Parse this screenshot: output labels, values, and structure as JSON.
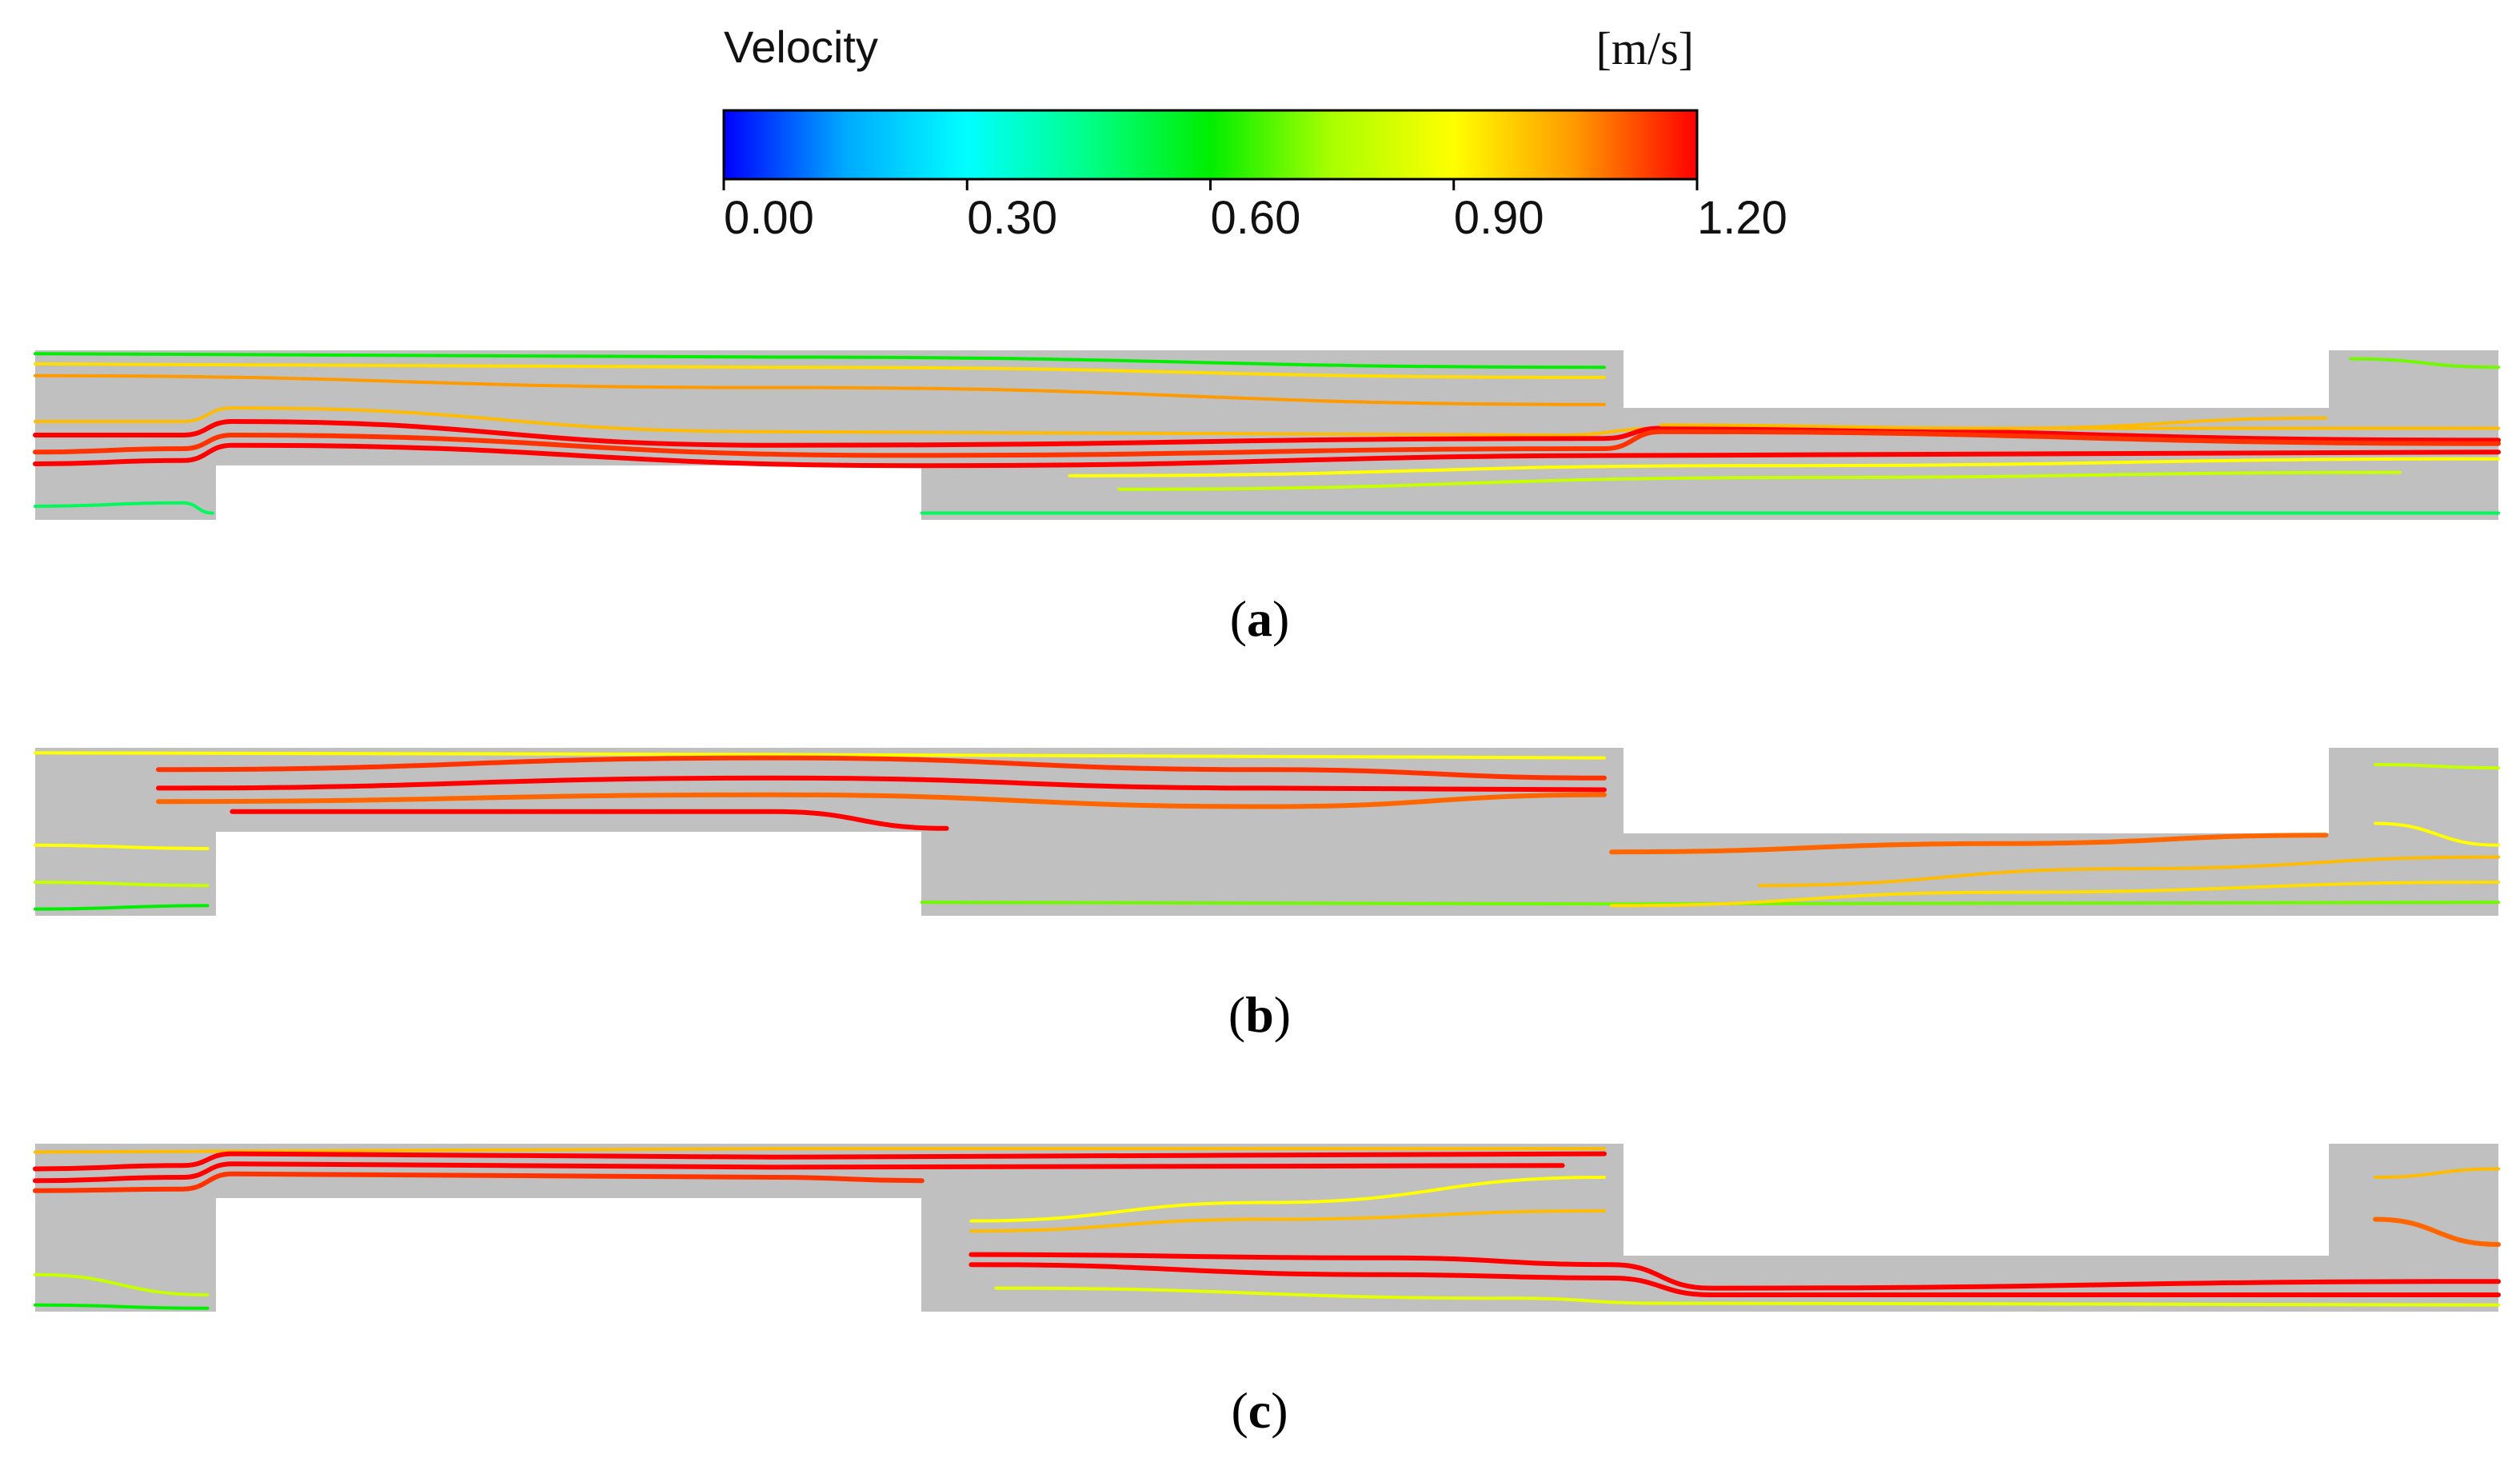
{
  "legend": {
    "title": "Velocity",
    "unit": "[m/s]",
    "min": 0.0,
    "max": 1.2,
    "ticks": [
      "0.00",
      "0.30",
      "0.60",
      "0.90",
      "1.20"
    ],
    "gradient_colors": [
      "#0000ff",
      "#00aaff",
      "#00ffff",
      "#00ff88",
      "#00ee00",
      "#aaff00",
      "#ffff00",
      "#ff9900",
      "#ff0000"
    ]
  },
  "colors": {
    "fluid": "#c0c0c0",
    "background": "#ffffff",
    "text": "#000000"
  },
  "panels": [
    {
      "id": "a",
      "label_open": "(",
      "label_letter": "a",
      "label_close": ")",
      "streamlines": [
        {
          "pts": [
            [
              0.0,
              0.02
            ],
            [
              0.3,
              0.04
            ],
            [
              0.637,
              0.1
            ]
          ],
          "speed": 0.6
        },
        {
          "pts": [
            [
              0.0,
              0.08
            ],
            [
              0.3,
              0.1
            ],
            [
              0.637,
              0.16
            ]
          ],
          "speed": 0.95
        },
        {
          "pts": [
            [
              0.0,
              0.15
            ],
            [
              0.3,
              0.22
            ],
            [
              0.637,
              0.32
            ]
          ],
          "speed": 1.05
        },
        {
          "pts": [
            [
              0.0,
              0.42
            ],
            [
              0.06,
              0.42
            ],
            [
              0.08,
              0.34
            ],
            [
              0.3,
              0.48
            ],
            [
              0.62,
              0.5
            ],
            [
              0.66,
              0.46
            ],
            [
              1.0,
              0.46
            ]
          ],
          "speed": 1.0
        },
        {
          "pts": [
            [
              0.0,
              0.5
            ],
            [
              0.06,
              0.5
            ],
            [
              0.08,
              0.42
            ],
            [
              0.3,
              0.56
            ],
            [
              0.637,
              0.52
            ],
            [
              0.66,
              0.46
            ],
            [
              1.0,
              0.53
            ]
          ],
          "speed": 1.2
        },
        {
          "pts": [
            [
              0.0,
              0.6
            ],
            [
              0.06,
              0.58
            ],
            [
              0.08,
              0.5
            ],
            [
              0.35,
              0.62
            ],
            [
              0.637,
              0.58
            ],
            [
              0.66,
              0.48
            ],
            [
              1.0,
              0.55
            ]
          ],
          "speed": 1.15
        },
        {
          "pts": [
            [
              0.0,
              0.67
            ],
            [
              0.06,
              0.65
            ],
            [
              0.08,
              0.56
            ],
            [
              0.36,
              0.68
            ],
            [
              0.66,
              0.62
            ],
            [
              1.0,
              0.6
            ]
          ],
          "speed": 1.2
        },
        {
          "pts": [
            [
              0.0,
              0.92
            ],
            [
              0.06,
              0.9
            ],
            [
              0.072,
              0.96
            ]
          ],
          "speed": 0.5
        },
        {
          "pts": [
            [
              0.42,
              0.74
            ],
            [
              0.7,
              0.68
            ],
            [
              1.0,
              0.64
            ]
          ],
          "speed": 0.9
        },
        {
          "pts": [
            [
              0.44,
              0.82
            ],
            [
              0.72,
              0.75
            ],
            [
              0.96,
              0.72
            ]
          ],
          "speed": 0.8
        },
        {
          "pts": [
            [
              0.36,
              0.96
            ],
            [
              0.7,
              0.96
            ],
            [
              1.0,
              0.96
            ]
          ],
          "speed": 0.5
        },
        {
          "pts": [
            [
              0.66,
              0.44
            ],
            [
              0.8,
              0.46
            ],
            [
              0.93,
              0.4
            ]
          ],
          "speed": 1.0
        },
        {
          "pts": [
            [
              0.94,
              0.05
            ],
            [
              1.0,
              0.1
            ]
          ],
          "speed": 0.7
        }
      ]
    },
    {
      "id": "b",
      "label_open": "(",
      "label_letter": "b",
      "label_close": ")",
      "streamlines": [
        {
          "pts": [
            [
              0.0,
              0.03
            ],
            [
              0.3,
              0.04
            ],
            [
              0.637,
              0.06
            ]
          ],
          "speed": 0.9
        },
        {
          "pts": [
            [
              0.05,
              0.13
            ],
            [
              0.3,
              0.06
            ],
            [
              0.5,
              0.13
            ],
            [
              0.637,
              0.18
            ]
          ],
          "speed": 1.15
        },
        {
          "pts": [
            [
              0.05,
              0.24
            ],
            [
              0.3,
              0.18
            ],
            [
              0.5,
              0.24
            ],
            [
              0.637,
              0.25
            ]
          ],
          "speed": 1.2
        },
        {
          "pts": [
            [
              0.05,
              0.32
            ],
            [
              0.3,
              0.28
            ],
            [
              0.5,
              0.35
            ],
            [
              0.637,
              0.28
            ]
          ],
          "speed": 1.1
        },
        {
          "pts": [
            [
              0.08,
              0.38
            ],
            [
              0.3,
              0.38
            ],
            [
              0.37,
              0.48
            ]
          ],
          "speed": 1.2
        },
        {
          "pts": [
            [
              0.0,
              0.58
            ],
            [
              0.07,
              0.6
            ]
          ],
          "speed": 0.9
        },
        {
          "pts": [
            [
              0.0,
              0.8
            ],
            [
              0.07,
              0.82
            ]
          ],
          "speed": 0.8
        },
        {
          "pts": [
            [
              0.0,
              0.96
            ],
            [
              0.07,
              0.94
            ]
          ],
          "speed": 0.6
        },
        {
          "pts": [
            [
              0.36,
              0.92
            ],
            [
              0.64,
              0.93
            ],
            [
              1.0,
              0.92
            ]
          ],
          "speed": 0.7
        },
        {
          "pts": [
            [
              0.64,
              0.62
            ],
            [
              0.8,
              0.57
            ],
            [
              0.93,
              0.52
            ]
          ],
          "speed": 1.1
        },
        {
          "pts": [
            [
              0.7,
              0.82
            ],
            [
              0.85,
              0.72
            ],
            [
              1.0,
              0.65
            ]
          ],
          "speed": 1.0
        },
        {
          "pts": [
            [
              0.64,
              0.94
            ],
            [
              0.8,
              0.86
            ],
            [
              1.0,
              0.8
            ]
          ],
          "speed": 0.95
        },
        {
          "pts": [
            [
              0.95,
              0.1
            ],
            [
              1.0,
              0.12
            ]
          ],
          "speed": 0.8
        },
        {
          "pts": [
            [
              0.95,
              0.45
            ],
            [
              1.0,
              0.58
            ]
          ],
          "speed": 0.9
        }
      ]
    },
    {
      "id": "c",
      "label_open": "(",
      "label_letter": "c",
      "label_close": ")",
      "streamlines": [
        {
          "pts": [
            [
              0.0,
              0.05
            ],
            [
              0.3,
              0.03
            ],
            [
              0.637,
              0.03
            ]
          ],
          "speed": 1.0
        },
        {
          "pts": [
            [
              0.0,
              0.15
            ],
            [
              0.06,
              0.13
            ],
            [
              0.08,
              0.06
            ],
            [
              0.3,
              0.08
            ],
            [
              0.637,
              0.06
            ]
          ],
          "speed": 1.2
        },
        {
          "pts": [
            [
              0.0,
              0.22
            ],
            [
              0.06,
              0.2
            ],
            [
              0.08,
              0.12
            ],
            [
              0.3,
              0.14
            ],
            [
              0.62,
              0.13
            ]
          ],
          "speed": 1.2
        },
        {
          "pts": [
            [
              0.0,
              0.28
            ],
            [
              0.06,
              0.27
            ],
            [
              0.08,
              0.18
            ],
            [
              0.3,
              0.2
            ],
            [
              0.36,
              0.22
            ]
          ],
          "speed": 1.15
        },
        {
          "pts": [
            [
              0.38,
              0.46
            ],
            [
              0.5,
              0.35
            ],
            [
              0.637,
              0.2
            ]
          ],
          "speed": 0.9
        },
        {
          "pts": [
            [
              0.38,
              0.52
            ],
            [
              0.5,
              0.45
            ],
            [
              0.637,
              0.4
            ]
          ],
          "speed": 1.0
        },
        {
          "pts": [
            [
              0.38,
              0.66
            ],
            [
              0.55,
              0.68
            ],
            [
              0.64,
              0.72
            ],
            [
              0.68,
              0.86
            ],
            [
              1.0,
              0.82
            ]
          ],
          "speed": 1.2
        },
        {
          "pts": [
            [
              0.38,
              0.72
            ],
            [
              0.55,
              0.78
            ],
            [
              0.64,
              0.8
            ],
            [
              0.68,
              0.9
            ],
            [
              1.0,
              0.9
            ]
          ],
          "speed": 1.2
        },
        {
          "pts": [
            [
              0.39,
              0.86
            ],
            [
              0.6,
              0.92
            ],
            [
              0.66,
              0.95
            ],
            [
              1.0,
              0.96
            ]
          ],
          "speed": 0.85
        },
        {
          "pts": [
            [
              0.0,
              0.78
            ],
            [
              0.07,
              0.9
            ]
          ],
          "speed": 0.8
        },
        {
          "pts": [
            [
              0.0,
              0.96
            ],
            [
              0.07,
              0.98
            ]
          ],
          "speed": 0.6
        },
        {
          "pts": [
            [
              0.95,
              0.2
            ],
            [
              1.0,
              0.15
            ]
          ],
          "speed": 1.0
        },
        {
          "pts": [
            [
              0.95,
              0.45
            ],
            [
              1.0,
              0.6
            ]
          ],
          "speed": 1.1
        }
      ]
    }
  ]
}
